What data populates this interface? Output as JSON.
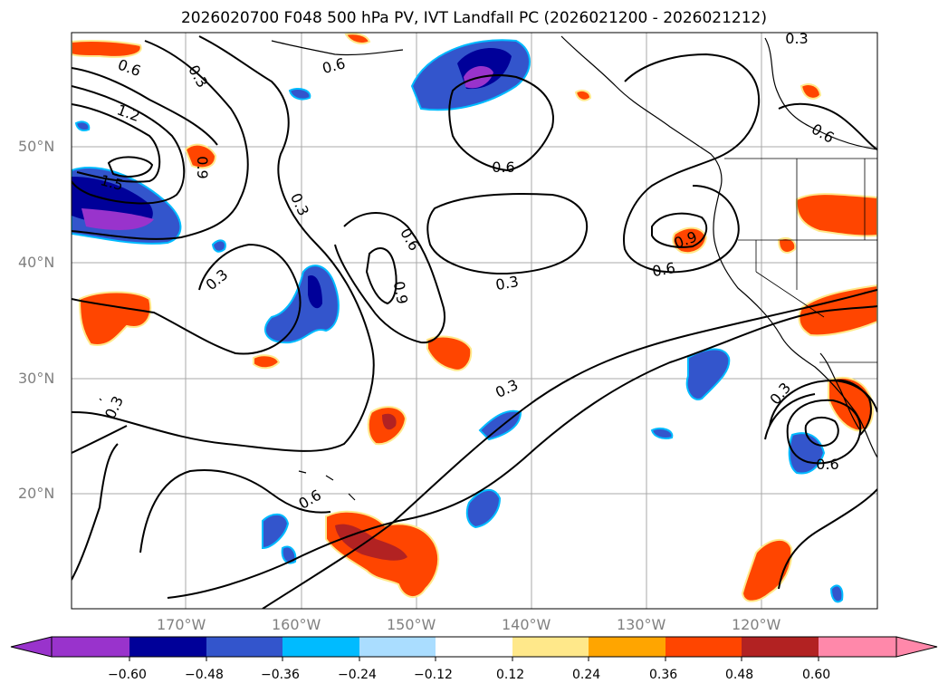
{
  "title": "2026020700 F048 500 hPa PV, IVT Landfall PC (2026021200 - 2026021212)",
  "latitude_labels": [
    "50°N",
    "40°N",
    "30°N",
    "20°N"
  ],
  "longitude_labels": [
    "170°W",
    "160°W",
    "150°W",
    "140°W",
    "130°W",
    "120°W"
  ],
  "contour_labels": [
    "0.3",
    "0.6",
    "0.9",
    "1.2",
    "1.5"
  ],
  "colorbar": {
    "ticks": [
      "−0.60",
      "−0.48",
      "−0.36",
      "−0.24",
      "−0.12",
      "0.12",
      "0.24",
      "0.36",
      "0.48",
      "0.60"
    ],
    "colors": [
      "#9933cc",
      "#000099",
      "#3355cc",
      "#00bbff",
      "#aaddff",
      "#ffffff",
      "#ffe88a",
      "#ffa500",
      "#ff4500",
      "#b22222",
      "#ff88aa"
    ]
  },
  "chart_data": {
    "type": "map",
    "title": "2026020700 F048 500 hPa PV, IVT Landfall PC (2026021200 - 2026021212)",
    "lat_range": [
      10,
      60
    ],
    "lon_range": [
      -180,
      -110
    ],
    "contour_levels": [
      0.3,
      0.6,
      0.9,
      1.2,
      1.5
    ],
    "shaded_levels": [
      -0.6,
      -0.48,
      -0.36,
      -0.24,
      -0.12,
      0.12,
      0.24,
      0.36,
      0.48,
      0.6
    ]
  }
}
